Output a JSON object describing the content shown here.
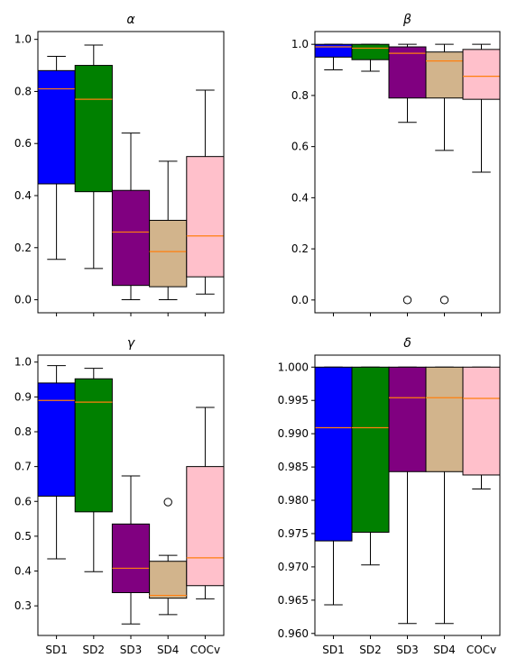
{
  "chart_data": [
    {
      "type": "box",
      "title": "α",
      "categories": [
        "SD1",
        "SD2",
        "SD3",
        "SD4",
        "COCv"
      ],
      "colors": [
        "#0000ff",
        "#008000",
        "#800080",
        "#d2b48c",
        "#ffc0cb"
      ],
      "median_color": "#ff7f0e",
      "ylim": [
        -0.05,
        1.03
      ],
      "yticks": [
        "0.0",
        "0.2",
        "0.4",
        "0.6",
        "0.8",
        "1.0"
      ],
      "show_xticklabels": false,
      "boxes": [
        {
          "whislo": 0.155,
          "q1": 0.445,
          "med": 0.81,
          "q3": 0.88,
          "whishi": 0.935,
          "fliers": []
        },
        {
          "whislo": 0.12,
          "q1": 0.415,
          "med": 0.77,
          "q3": 0.9,
          "whishi": 0.978,
          "fliers": []
        },
        {
          "whislo": 0.0,
          "q1": 0.055,
          "med": 0.26,
          "q3": 0.42,
          "whishi": 0.64,
          "fliers": []
        },
        {
          "whislo": 0.0,
          "q1": 0.05,
          "med": 0.185,
          "q3": 0.305,
          "whishi": 0.532,
          "fliers": []
        },
        {
          "whislo": 0.022,
          "q1": 0.088,
          "med": 0.245,
          "q3": 0.55,
          "whishi": 0.805,
          "fliers": []
        }
      ]
    },
    {
      "type": "box",
      "title": "β",
      "categories": [
        "SD1",
        "SD2",
        "SD3",
        "SD4",
        "COCv"
      ],
      "colors": [
        "#0000ff",
        "#008000",
        "#800080",
        "#d2b48c",
        "#ffc0cb"
      ],
      "median_color": "#ff7f0e",
      "ylim": [
        -0.05,
        1.05
      ],
      "yticks": [
        "0.0",
        "0.2",
        "0.4",
        "0.6",
        "0.8",
        "1.0"
      ],
      "show_xticklabels": false,
      "boxes": [
        {
          "whislo": 0.9,
          "q1": 0.95,
          "med": 0.99,
          "q3": 1.0,
          "whishi": 1.0,
          "fliers": []
        },
        {
          "whislo": 0.895,
          "q1": 0.94,
          "med": 0.985,
          "q3": 1.0,
          "whishi": 1.0,
          "fliers": []
        },
        {
          "whislo": 0.695,
          "q1": 0.79,
          "med": 0.965,
          "q3": 0.99,
          "whishi": 1.0,
          "fliers": [
            0.0
          ]
        },
        {
          "whislo": 0.585,
          "q1": 0.79,
          "med": 0.935,
          "q3": 0.97,
          "whishi": 1.0,
          "fliers": [
            0.0
          ]
        },
        {
          "whislo": 0.5,
          "q1": 0.785,
          "med": 0.875,
          "q3": 0.98,
          "whishi": 1.0,
          "fliers": []
        }
      ]
    },
    {
      "type": "box",
      "title": "γ",
      "categories": [
        "SD1",
        "SD2",
        "SD3",
        "SD4",
        "COCv"
      ],
      "colors": [
        "#0000ff",
        "#008000",
        "#800080",
        "#d2b48c",
        "#ffc0cb"
      ],
      "median_color": "#ff7f0e",
      "ylim": [
        0.215,
        1.02
      ],
      "yticks": [
        "0.3",
        "0.4",
        "0.5",
        "0.6",
        "0.7",
        "0.8",
        "0.9",
        "1.0"
      ],
      "show_xticklabels": true,
      "boxes": [
        {
          "whislo": 0.435,
          "q1": 0.615,
          "med": 0.89,
          "q3": 0.94,
          "whishi": 0.99,
          "fliers": []
        },
        {
          "whislo": 0.398,
          "q1": 0.57,
          "med": 0.885,
          "q3": 0.952,
          "whishi": 0.982,
          "fliers": []
        },
        {
          "whislo": 0.248,
          "q1": 0.338,
          "med": 0.408,
          "q3": 0.535,
          "whishi": 0.673,
          "fliers": []
        },
        {
          "whislo": 0.275,
          "q1": 0.322,
          "med": 0.33,
          "q3": 0.428,
          "whishi": 0.445,
          "fliers": [
            0.598
          ]
        },
        {
          "whislo": 0.32,
          "q1": 0.358,
          "med": 0.438,
          "q3": 0.7,
          "whishi": 0.87,
          "fliers": []
        }
      ]
    },
    {
      "type": "box",
      "title": "δ",
      "categories": [
        "SD1",
        "SD2",
        "SD3",
        "SD4",
        "COCv"
      ],
      "colors": [
        "#0000ff",
        "#008000",
        "#800080",
        "#d2b48c",
        "#ffc0cb"
      ],
      "median_color": "#ff7f0e",
      "ylim": [
        0.9597,
        1.0018
      ],
      "yticks": [
        "0.960",
        "0.965",
        "0.970",
        "0.975",
        "0.980",
        "0.985",
        "0.990",
        "0.995",
        "1.000"
      ],
      "show_xticklabels": true,
      "boxes": [
        {
          "whislo": 0.9643,
          "q1": 0.9739,
          "med": 0.9909,
          "q3": 1.0,
          "whishi": 1.0,
          "fliers": []
        },
        {
          "whislo": 0.9703,
          "q1": 0.9752,
          "med": 0.9909,
          "q3": 1.0,
          "whishi": 1.0,
          "fliers": []
        },
        {
          "whislo": 0.9615,
          "q1": 0.9843,
          "med": 0.9954,
          "q3": 1.0,
          "whishi": 1.0,
          "fliers": []
        },
        {
          "whislo": 0.9615,
          "q1": 0.9843,
          "med": 0.9954,
          "q3": 1.0,
          "whishi": 1.0,
          "fliers": []
        },
        {
          "whislo": 0.9817,
          "q1": 0.9838,
          "med": 0.9953,
          "q3": 1.0,
          "whishi": 1.0,
          "fliers": []
        }
      ]
    }
  ]
}
